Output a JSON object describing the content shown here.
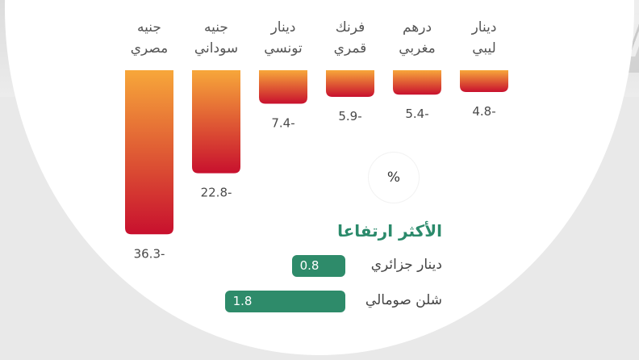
{
  "chart_data": [
    {
      "type": "bar",
      "categories": [
        "جنيه مصري",
        "جنيه سوداني",
        "دينار تونسي",
        "فرنك قمري",
        "درهم مغربي",
        "دينار ليبي"
      ],
      "values": [
        -36.3,
        -22.8,
        -7.4,
        -5.9,
        -5.4,
        -4.8
      ],
      "value_labels": [
        "36.3-",
        "22.8-",
        "7.4-",
        "5.9-",
        "5.4-",
        "4.8-"
      ],
      "unit": "%",
      "colors": {
        "top": "#f7a73a",
        "bottom": "#c8102e"
      }
    },
    {
      "type": "bar",
      "title": "الأكثر ارتفاعا",
      "categories": [
        "دينار جزائري",
        "شلن صومالي"
      ],
      "values": [
        0.8,
        1.8
      ],
      "value_labels": [
        "0.8",
        "1.8"
      ],
      "color": "#2e8b6a"
    }
  ],
  "unit_symbol": "%",
  "deco": {
    "yen_symbol": "¥"
  }
}
